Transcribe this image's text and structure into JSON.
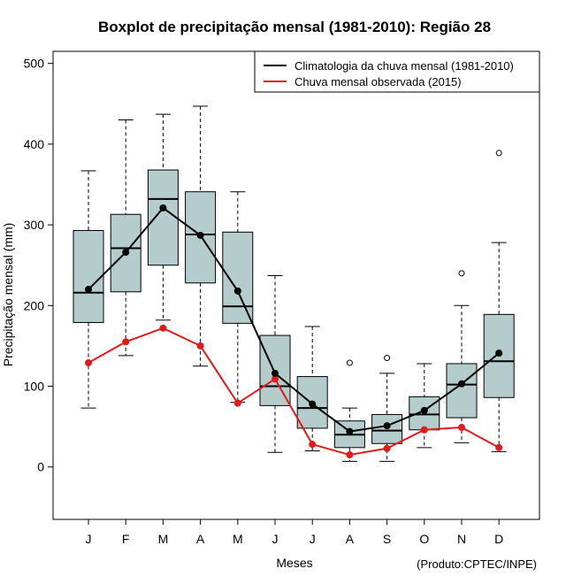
{
  "chart_data": {
    "type": "boxplot",
    "title": "Boxplot de precipitação mensal (1981-2010): Região 28",
    "xlabel": "Meses",
    "ylabel": "Precipitação mensal (mm)",
    "credit": "(Produto:CPTEC/INPE)",
    "ylim": [
      -65,
      515
    ],
    "yticks": [
      0,
      100,
      200,
      300,
      400,
      500
    ],
    "categories": [
      "J",
      "F",
      "M",
      "A",
      "M",
      "J",
      "J",
      "A",
      "S",
      "O",
      "N",
      "D"
    ],
    "boxes": [
      {
        "whisker_low": 73,
        "q1": 179,
        "median": 216,
        "q3": 293,
        "whisker_high": 367,
        "outliers": []
      },
      {
        "whisker_low": 138,
        "q1": 217,
        "median": 271,
        "q3": 313,
        "whisker_high": 430,
        "outliers": []
      },
      {
        "whisker_low": 182,
        "q1": 250,
        "median": 332,
        "q3": 368,
        "whisker_high": 437,
        "outliers": []
      },
      {
        "whisker_low": 125,
        "q1": 228,
        "median": 288,
        "q3": 341,
        "whisker_high": 447,
        "outliers": []
      },
      {
        "whisker_low": 80,
        "q1": 178,
        "median": 199,
        "q3": 291,
        "whisker_high": 341,
        "outliers": []
      },
      {
        "whisker_low": 18,
        "q1": 76,
        "median": 100,
        "q3": 163,
        "whisker_high": 237,
        "outliers": []
      },
      {
        "whisker_low": 20,
        "q1": 48,
        "median": 73,
        "q3": 112,
        "whisker_high": 174,
        "outliers": []
      },
      {
        "whisker_low": 7,
        "q1": 24,
        "median": 40,
        "q3": 57,
        "whisker_high": 73,
        "outliers": [
          129
        ]
      },
      {
        "whisker_low": 7,
        "q1": 29,
        "median": 45,
        "q3": 65,
        "whisker_high": 116,
        "outliers": [
          135
        ]
      },
      {
        "whisker_low": 24,
        "q1": 46,
        "median": 65,
        "q3": 87,
        "whisker_high": 128,
        "outliers": []
      },
      {
        "whisker_low": 30,
        "q1": 61,
        "median": 102,
        "q3": 128,
        "whisker_high": 200,
        "outliers": [
          240
        ]
      },
      {
        "whisker_low": 19,
        "q1": 86,
        "median": 131,
        "q3": 189,
        "whisker_high": 278,
        "outliers": [
          389
        ]
      }
    ],
    "series": [
      {
        "name": "Climatologia da chuva mensal (1981-2010)",
        "color": "#000000",
        "values": [
          220,
          266,
          321,
          287,
          218,
          116,
          78,
          44,
          51,
          70,
          103,
          141
        ]
      },
      {
        "name": "Chuva mensal observada (2015)",
        "color": "#e31a1c",
        "values": [
          129,
          155,
          172,
          150,
          79,
          109,
          28,
          15,
          23,
          46,
          49,
          24
        ]
      }
    ],
    "box_fill": "#b4cccb",
    "legend_position": "top-right"
  }
}
